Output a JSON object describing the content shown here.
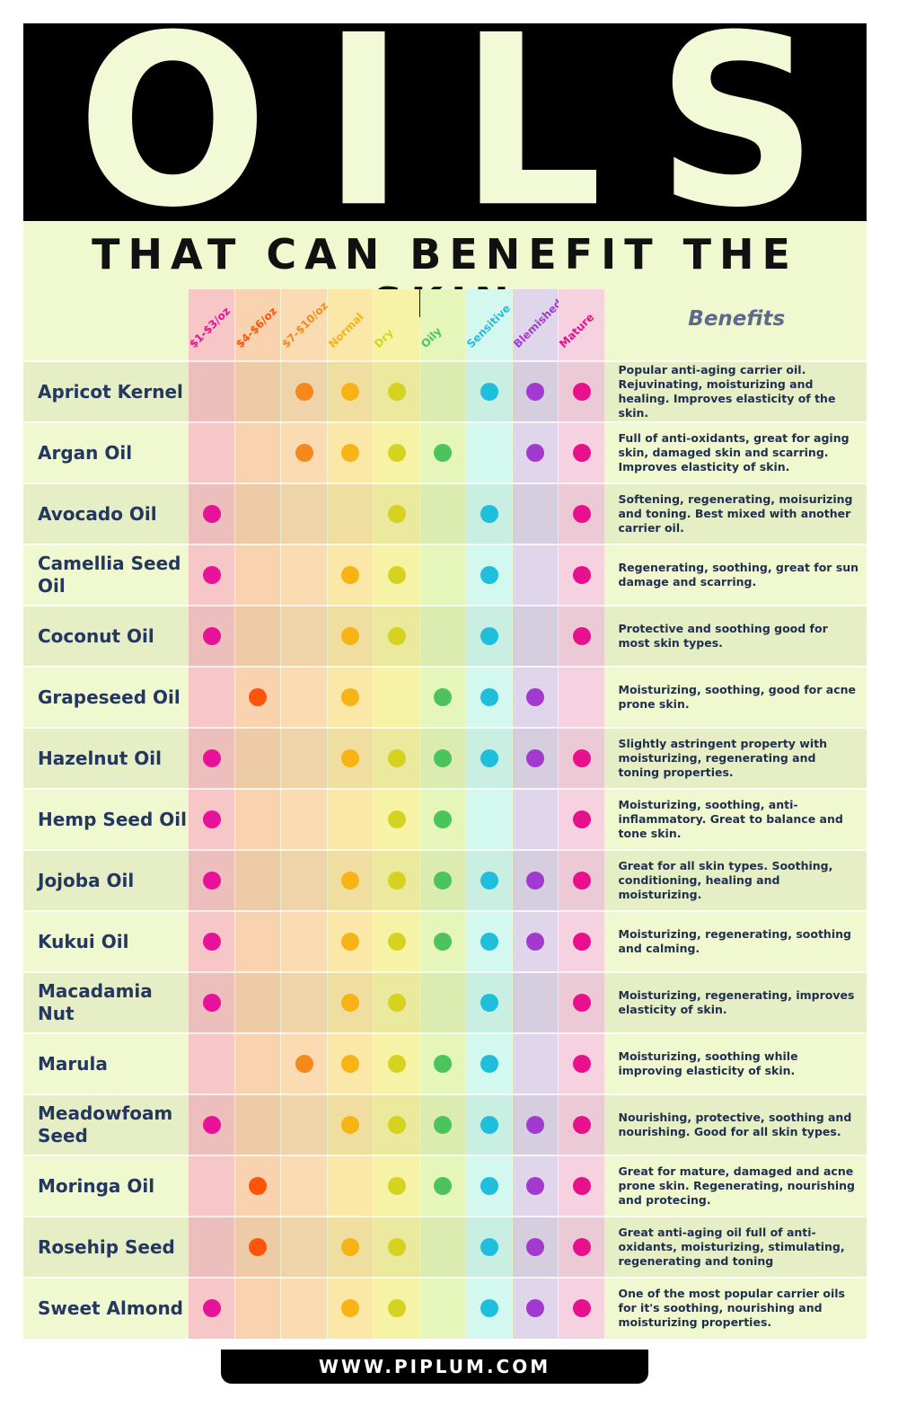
{
  "header": {
    "title": "OILS",
    "subtitle": "THAT CAN BENEFIT THE SKIN"
  },
  "table": {
    "columns": [
      {
        "label": "$1-$3/oz",
        "color": "#f7c6c6",
        "dot": "#e8119a"
      },
      {
        "label": "$4-$6/oz",
        "color": "#f9d3b0",
        "dot": "#ff540a"
      },
      {
        "label": "$7-$10/oz",
        "color": "#fbdcb2",
        "dot": "#f5891c"
      },
      {
        "label": "Normal",
        "color": "#fbe7a8",
        "dot": "#f8b415"
      },
      {
        "label": "Dry",
        "color": "#f6f3a6",
        "dot": "#d5d320"
      },
      {
        "label": "Oily",
        "color": "#e6f5b9",
        "dot": "#4cc45e"
      },
      {
        "label": "Sensitive",
        "color": "#d2f8ef",
        "dot": "#1fbfdc"
      },
      {
        "label": "Blemished",
        "color": "#dfd6eb",
        "dot": "#a33ad0"
      },
      {
        "label": "Mature",
        "color": "#f6d2e1",
        "dot": "#e8108c"
      }
    ],
    "benefits_header": "Benefits",
    "rows": [
      {
        "name": "Apricot Kernel",
        "marks": [
          0,
          0,
          1,
          1,
          1,
          0,
          1,
          1,
          1
        ],
        "benefits": "Popular anti-aging carrier oil. Rejuvinating, moisturizing and healing. Improves elasticity of the skin."
      },
      {
        "name": "Argan Oil",
        "marks": [
          0,
          0,
          1,
          1,
          1,
          1,
          0,
          1,
          1
        ],
        "benefits": "Full of anti-oxidants, great for aging skin, damaged skin and scarring. Improves elasticity of skin."
      },
      {
        "name": "Avocado Oil",
        "marks": [
          1,
          0,
          0,
          0,
          1,
          0,
          1,
          0,
          1
        ],
        "benefits": "Softening, regenerating, moisurizing and toning. Best mixed with another carrier oil."
      },
      {
        "name": "Camellia Seed Oil",
        "marks": [
          1,
          0,
          0,
          1,
          1,
          0,
          1,
          0,
          1
        ],
        "benefits": "Regenerating, soothing, great for sun damage and scarring."
      },
      {
        "name": "Coconut Oil",
        "marks": [
          1,
          0,
          0,
          1,
          1,
          0,
          1,
          0,
          1
        ],
        "benefits": "Protective and soothing good for most skin types."
      },
      {
        "name": "Grapeseed Oil",
        "marks": [
          0,
          1,
          0,
          1,
          0,
          1,
          1,
          1,
          0
        ],
        "benefits": "Moisturizing, soothing, good for acne prone skin."
      },
      {
        "name": "Hazelnut Oil",
        "marks": [
          1,
          0,
          0,
          1,
          1,
          1,
          1,
          1,
          1
        ],
        "benefits": "Slightly astringent property with moisturizing, regenerating and toning properties."
      },
      {
        "name": "Hemp Seed Oil",
        "marks": [
          1,
          0,
          0,
          0,
          1,
          1,
          0,
          0,
          1
        ],
        "benefits": "Moisturizing, soothing, anti-inflammatory. Great to balance and tone skin."
      },
      {
        "name": "Jojoba Oil",
        "marks": [
          1,
          0,
          0,
          1,
          1,
          1,
          1,
          1,
          1
        ],
        "benefits": "Great for all skin types. Soothing, conditioning, healing and moisturizing."
      },
      {
        "name": "Kukui Oil",
        "marks": [
          1,
          0,
          0,
          1,
          1,
          1,
          1,
          1,
          1
        ],
        "benefits": "Moisturizing, regenerating, soothing and calming."
      },
      {
        "name": "Macadamia Nut",
        "marks": [
          1,
          0,
          0,
          1,
          1,
          0,
          1,
          0,
          1
        ],
        "benefits": "Moisturizing, regenerating, improves elasticity of skin."
      },
      {
        "name": "Marula",
        "marks": [
          0,
          0,
          1,
          1,
          1,
          1,
          1,
          0,
          1
        ],
        "benefits": "Moisturizing, soothing while improving elasticity of skin."
      },
      {
        "name": "Meadowfoam Seed",
        "marks": [
          1,
          0,
          0,
          1,
          1,
          1,
          1,
          1,
          1
        ],
        "benefits": "Nourishing, protective, soothing and nourishing. Good for all skin types."
      },
      {
        "name": "Moringa Oil",
        "marks": [
          0,
          1,
          0,
          0,
          1,
          1,
          1,
          1,
          1
        ],
        "benefits": "Great for mature, damaged and acne prone skin. Regenerating, nourishing and protecing."
      },
      {
        "name": "Rosehip Seed",
        "marks": [
          0,
          1,
          0,
          1,
          1,
          0,
          1,
          1,
          1
        ],
        "benefits": "Great anti-aging oil full of anti-oxidants, moisturizing, stimulating, regenerating and toning"
      },
      {
        "name": "Sweet Almond",
        "marks": [
          1,
          0,
          0,
          1,
          1,
          0,
          1,
          1,
          1
        ],
        "benefits": "One of the most popular carrier oils for it's soothing, nourishing and moisturizing properties."
      }
    ]
  },
  "footer": "WWW.PIPLUM.COM"
}
